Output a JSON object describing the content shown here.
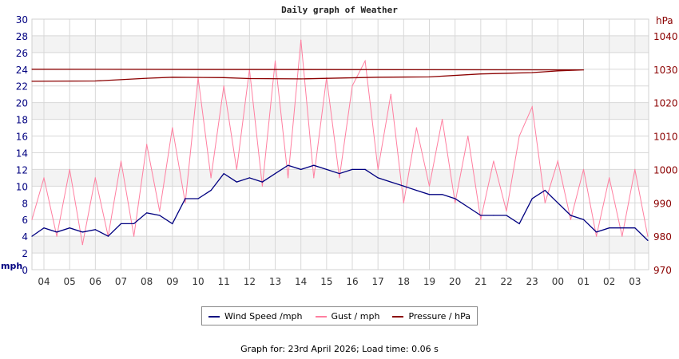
{
  "chart_data": {
    "type": "line",
    "title": "Daily graph of Weather",
    "left_axis": {
      "unit": "mph",
      "ylim": [
        0,
        30
      ],
      "ticks": [
        0,
        2,
        4,
        6,
        8,
        10,
        12,
        14,
        16,
        18,
        20,
        22,
        24,
        26,
        28,
        30
      ],
      "color": "#000080"
    },
    "right_axis": {
      "unit": "hPa",
      "ylim": [
        970,
        1045
      ],
      "ticks": [
        970,
        980,
        990,
        1000,
        1010,
        1020,
        1030,
        1040
      ],
      "color": "#8b0000"
    },
    "x_ticks": [
      "04",
      "05",
      "06",
      "07",
      "08",
      "09",
      "10",
      "11",
      "12",
      "13",
      "14",
      "15",
      "16",
      "17",
      "18",
      "19",
      "20",
      "21",
      "22",
      "23",
      "00",
      "01",
      "02",
      "03"
    ],
    "x_range": [
      "03:32",
      "03:32"
    ],
    "grid": true,
    "legend_placement": "bottom",
    "series": [
      {
        "name": "Wind Speed /mph",
        "axis": "left",
        "color": "#000080",
        "x": [
          "03:32",
          "04:00",
          "04:30",
          "05:00",
          "05:30",
          "06:00",
          "06:30",
          "07:00",
          "07:30",
          "08:00",
          "08:30",
          "09:00",
          "09:30",
          "10:00",
          "10:30",
          "11:00",
          "11:30",
          "12:00",
          "12:30",
          "13:00",
          "13:30",
          "14:00",
          "14:30",
          "15:00",
          "15:30",
          "16:00",
          "16:30",
          "17:00",
          "17:30",
          "18:00",
          "18:30",
          "19:00",
          "19:30",
          "20:00",
          "20:30",
          "21:00",
          "21:30",
          "22:00",
          "22:30",
          "23:00",
          "23:30",
          "00:00",
          "00:30",
          "01:00",
          "01:30",
          "02:00",
          "02:30",
          "03:00",
          "03:30"
        ],
        "values": [
          4,
          5,
          4.5,
          5,
          4.5,
          4.8,
          4,
          5.5,
          5.5,
          6.8,
          6.5,
          5.5,
          8.5,
          8.5,
          9.5,
          11.5,
          10.5,
          11,
          10.5,
          11.5,
          12.5,
          12,
          12.5,
          12,
          11.5,
          12,
          12,
          11,
          10.5,
          10,
          9.5,
          9,
          9,
          8.5,
          7.5,
          6.5,
          6.5,
          6.5,
          5.5,
          8.5,
          9.5,
          8,
          6.5,
          6,
          4.5,
          5,
          5,
          5,
          3.5
        ]
      },
      {
        "name": "Gust / mph",
        "axis": "left",
        "color": "#ff7fa0",
        "x": [
          "03:32",
          "04:00",
          "04:30",
          "05:00",
          "05:30",
          "06:00",
          "06:30",
          "07:00",
          "07:30",
          "08:00",
          "08:30",
          "09:00",
          "09:30",
          "10:00",
          "10:30",
          "11:00",
          "11:30",
          "12:00",
          "12:30",
          "13:00",
          "13:30",
          "14:00",
          "14:30",
          "15:00",
          "15:30",
          "16:00",
          "16:30",
          "17:00",
          "17:30",
          "18:00",
          "18:30",
          "19:00",
          "19:30",
          "20:00",
          "20:30",
          "21:00",
          "21:30",
          "22:00",
          "22:30",
          "23:00",
          "23:30",
          "00:00",
          "00:30",
          "01:00",
          "01:30",
          "02:00",
          "02:30",
          "03:00",
          "03:30"
        ],
        "values": [
          6,
          11,
          4,
          12,
          3,
          11,
          4,
          13,
          4,
          15,
          7,
          17,
          8,
          23,
          11,
          22,
          12,
          24,
          10,
          25,
          11,
          27.5,
          11,
          23,
          11,
          22,
          25,
          12,
          21,
          8,
          17,
          10,
          18,
          8,
          16,
          6,
          13,
          7,
          16,
          19.5,
          8,
          13,
          6,
          12,
          4,
          11,
          4,
          12,
          4
        ]
      },
      {
        "name": "Pressure / hPa",
        "axis": "right",
        "color": "#8b0000",
        "x": [
          "03:32",
          "06:00",
          "08:00",
          "09:00",
          "11:00",
          "12:00",
          "14:00",
          "17:00",
          "19:00",
          "21:00",
          "23:00",
          "00:00",
          "01:00",
          "03:32"
        ],
        "values": [
          1026.4,
          1026.5,
          1027.3,
          1027.6,
          1027.5,
          1027.2,
          1027.1,
          1027.6,
          1027.7,
          1028.6,
          1029.0,
          1029.5,
          1029.8,
          1030.0
        ]
      }
    ]
  },
  "footer": "Graph for: 23rd April 2026; Load time: 0.06 s"
}
